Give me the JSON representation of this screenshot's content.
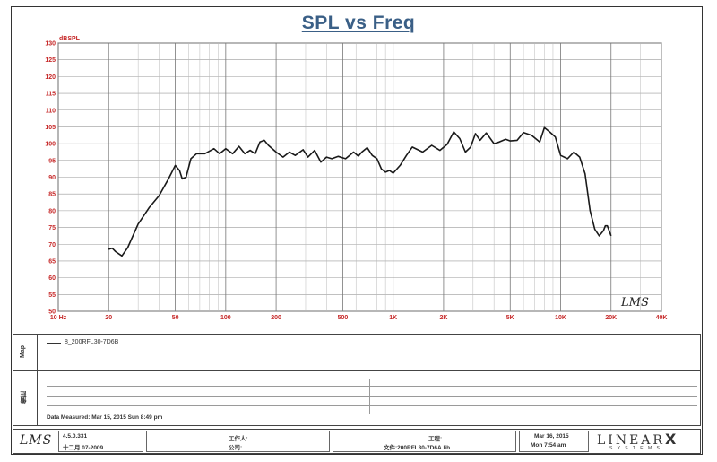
{
  "chart_data": {
    "type": "line",
    "title": "SPL vs Freq",
    "ylabel": "dBSPL",
    "xlabel": "",
    "xscale": "log",
    "xlim": [
      10,
      40000
    ],
    "ylim": [
      50,
      130
    ],
    "grid": true,
    "y_ticks": [
      "50",
      "55",
      "60",
      "65",
      "70",
      "75",
      "80",
      "85",
      "90",
      "95",
      "100",
      "105",
      "110",
      "115",
      "120",
      "125",
      "130"
    ],
    "x_ticks": [
      {
        "value": 10,
        "label": "10  Hz"
      },
      {
        "value": 20,
        "label": "20"
      },
      {
        "value": 50,
        "label": "50"
      },
      {
        "value": 100,
        "label": "100"
      },
      {
        "value": 200,
        "label": "200"
      },
      {
        "value": 500,
        "label": "500"
      },
      {
        "value": 1000,
        "label": "1K"
      },
      {
        "value": 2000,
        "label": "2K"
      },
      {
        "value": 5000,
        "label": "5K"
      },
      {
        "value": 10000,
        "label": "10K"
      },
      {
        "value": 20000,
        "label": "20K"
      },
      {
        "value": 40000,
        "label": "40K"
      }
    ],
    "series": [
      {
        "name": "8_200RFL30-7D6B",
        "color": "#1a1a1a",
        "x": [
          20,
          21,
          22,
          24,
          26,
          30,
          35,
          40,
          45,
          50,
          53,
          55,
          58,
          62,
          67,
          75,
          85,
          92,
          100,
          110,
          120,
          130,
          140,
          150,
          160,
          170,
          180,
          200,
          220,
          240,
          260,
          290,
          310,
          340,
          370,
          400,
          430,
          470,
          520,
          580,
          620,
          650,
          700,
          750,
          800,
          850,
          900,
          950,
          1000,
          1100,
          1200,
          1300,
          1500,
          1700,
          1900,
          2100,
          2300,
          2500,
          2700,
          2900,
          3100,
          3300,
          3600,
          4000,
          4300,
          4700,
          5000,
          5500,
          6000,
          6700,
          7500,
          8000,
          8600,
          9300,
          10000,
          11000,
          12000,
          13000,
          14000,
          15000,
          16000,
          17000,
          18000,
          18500,
          19000,
          20000
        ],
        "y": [
          68.5,
          68.8,
          67.8,
          66.5,
          69,
          76,
          81,
          84.5,
          89,
          93.5,
          92,
          89.5,
          90,
          95.5,
          97,
          97,
          98.5,
          97,
          98.5,
          97,
          99.2,
          97,
          98,
          97,
          100.5,
          101,
          99.5,
          97.5,
          96,
          97.5,
          96.5,
          98.2,
          96,
          98,
          94.5,
          96,
          95.5,
          96.2,
          95.5,
          97.5,
          96.3,
          97.5,
          98.8,
          96.5,
          95.5,
          92.5,
          91.5,
          92,
          91.2,
          93.5,
          96.5,
          99,
          97.5,
          99.5,
          98,
          99.8,
          103.5,
          101.5,
          97.5,
          99,
          103,
          101,
          103.2,
          100,
          100.5,
          101.3,
          100.8,
          101,
          103.3,
          102.5,
          100.5,
          104.8,
          103.5,
          102,
          96.5,
          95.5,
          97.5,
          96,
          91,
          80,
          74.5,
          72.5,
          74,
          75.5,
          75.5,
          72.5
        ]
      }
    ]
  },
  "chart_logo": "LMS",
  "legend": {
    "side_label": "Map",
    "entry": "8_200RFL30-7D6B"
  },
  "notes": {
    "side_label": "備註",
    "measured": "Data Measured: Mar 15, 2015  Sun  8:49 pm"
  },
  "footer": {
    "logo": "LMS",
    "version": "4.5.0.331",
    "version_date": "十二月.07-2009",
    "person_label": "工作人:",
    "company_label": "公司:",
    "project_label": "工程:",
    "file_label": "文件:200RFL30-7D6A.lib",
    "date": "Mar 16, 2015",
    "time": "Mon  7:54 am",
    "brand_left": "LINEAR",
    "brand_x": "X",
    "brand_sub": "S Y S T E M S"
  },
  "colors": {
    "title": "#3a5f86",
    "grid": "#9a9a9a",
    "axis_text": "#c62828",
    "curve": "#1a1a1a"
  }
}
